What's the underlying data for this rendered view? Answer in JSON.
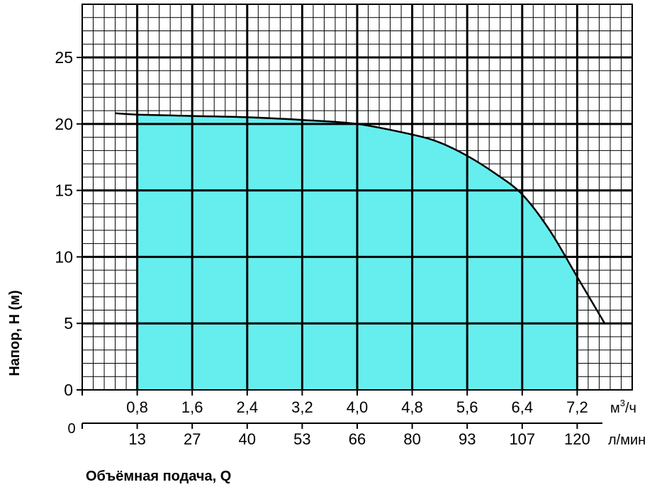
{
  "chart_data": {
    "type": "area",
    "ylabel": "Напор, H (м)",
    "xlabel": "Объёмная подача, Q",
    "y_axis": {
      "ticks": [
        "0",
        "5",
        "10",
        "15",
        "20",
        "25"
      ],
      "ylim": [
        0,
        29
      ]
    },
    "x_axis_primary": {
      "unit": "м³/ч",
      "unit_base": "м",
      "unit_sup": "3",
      "unit_suffix": "/ч",
      "zero_label": "0",
      "tick_values": [
        0.8,
        1.6,
        2.4,
        3.2,
        4.0,
        4.8,
        5.6,
        6.4,
        7.2
      ],
      "tick_labels": [
        "0,8",
        "1,6",
        "2,4",
        "3,2",
        "4,0",
        "4,8",
        "5,6",
        "6,4",
        "7,2"
      ],
      "xlim": [
        0,
        8.0
      ]
    },
    "x_axis_secondary": {
      "unit": "л/мин",
      "zero_label": "0",
      "tick_labels": [
        "13",
        "27",
        "40",
        "53",
        "66",
        "80",
        "93",
        "107",
        "120"
      ]
    },
    "grid": true,
    "fill_color": "#66EEEE",
    "line_color": "#000000",
    "shaded_range": [
      0.8,
      7.2
    ],
    "series": [
      {
        "x": [
          0.48,
          0.8,
          1.6,
          2.4,
          3.2,
          4.0,
          4.8,
          5.2,
          5.6,
          6.0,
          6.4,
          6.8,
          7.2,
          7.6
        ],
        "y": [
          20.8,
          20.7,
          20.6,
          20.5,
          20.3,
          20.0,
          19.2,
          18.6,
          17.6,
          16.3,
          14.7,
          12.0,
          8.5,
          5.0
        ]
      }
    ]
  }
}
